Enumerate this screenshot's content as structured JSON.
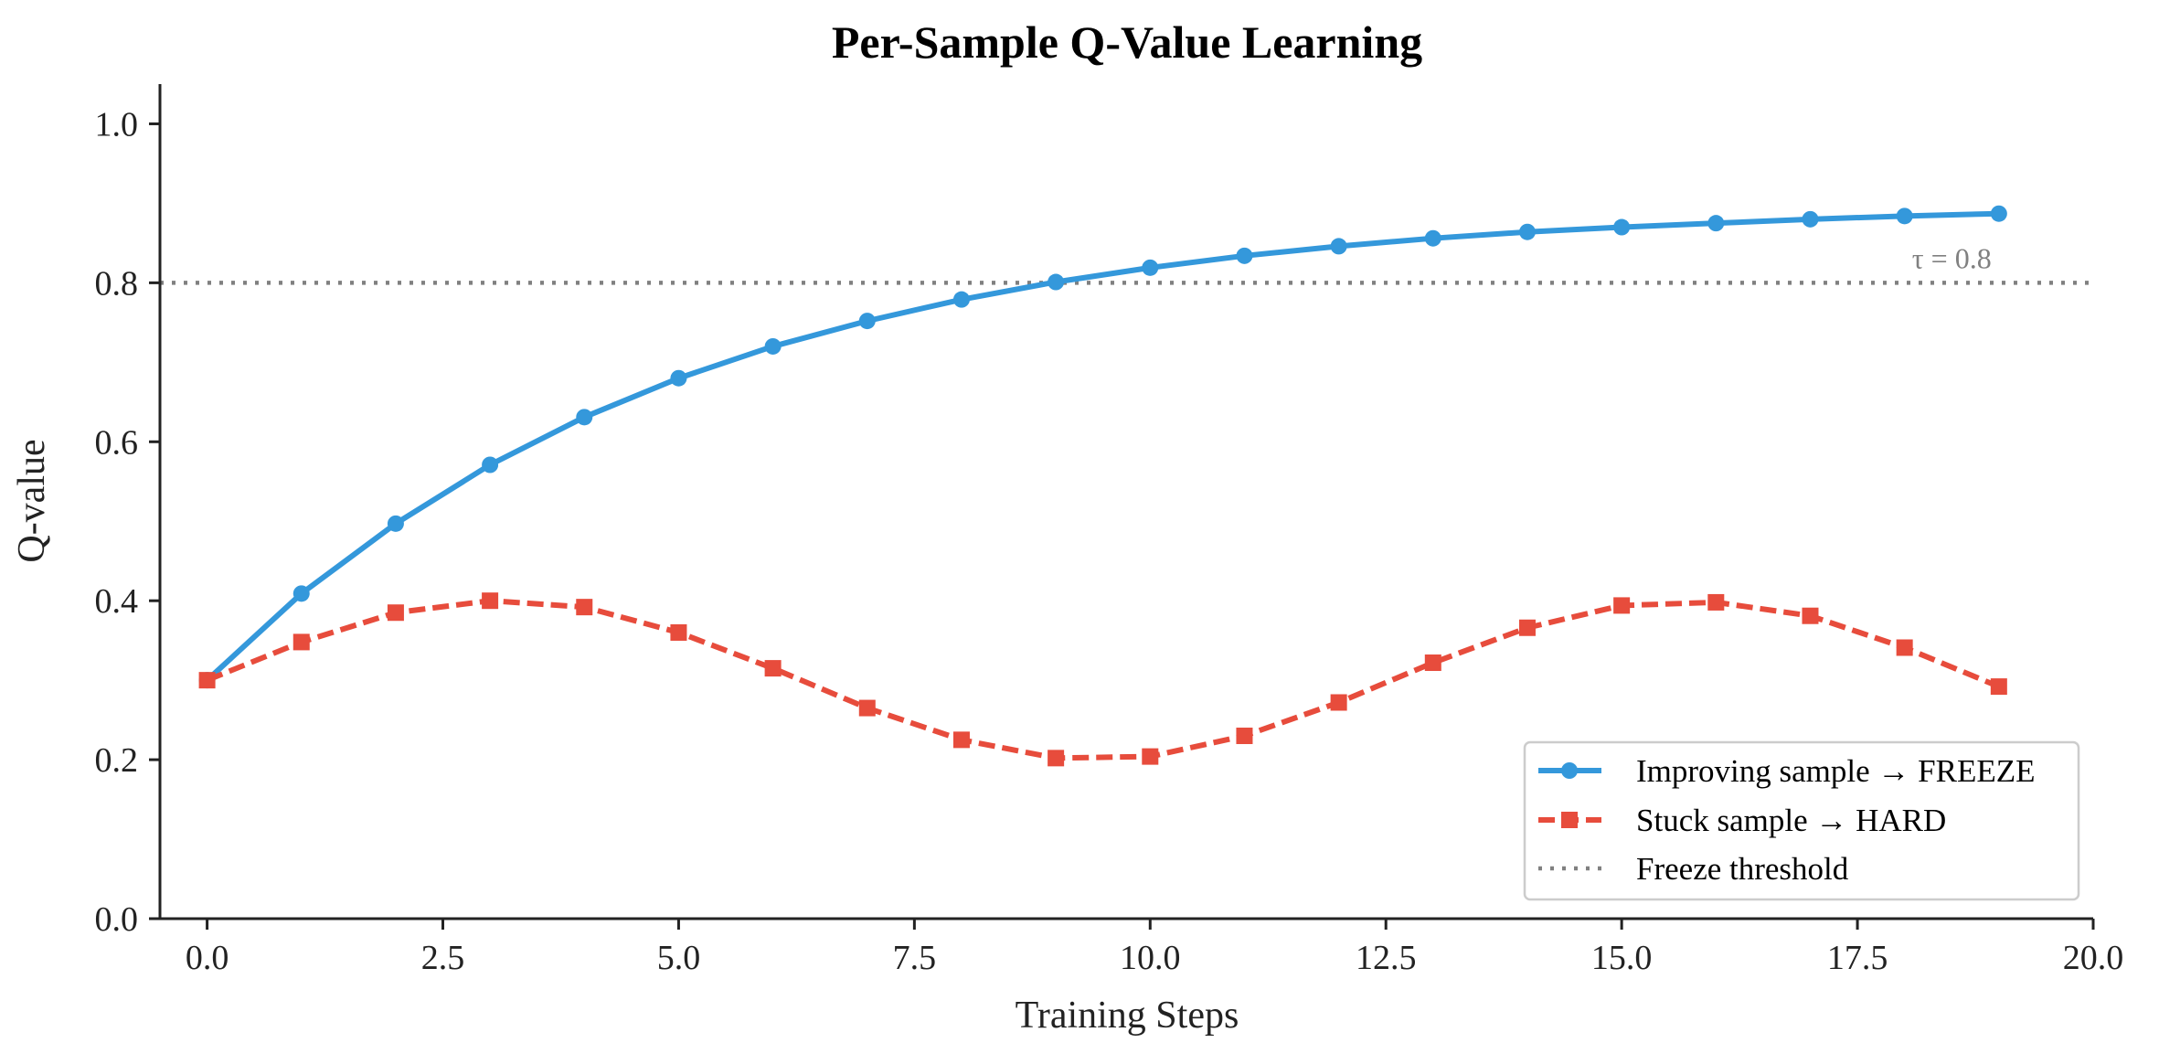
{
  "chart_data": {
    "type": "line",
    "title": "Per-Sample Q-Value Learning",
    "xlabel": "Training Steps",
    "ylabel": "Q-value",
    "xlim": [
      -0.5,
      20.0
    ],
    "ylim": [
      0.0,
      1.05
    ],
    "xticks": [
      "0.0",
      "2.5",
      "5.0",
      "7.5",
      "10.0",
      "12.5",
      "15.0",
      "17.5",
      "20.0"
    ],
    "yticks": [
      "0.0",
      "0.2",
      "0.4",
      "0.6",
      "0.8",
      "1.0"
    ],
    "x": [
      0,
      1,
      2,
      3,
      4,
      5,
      6,
      7,
      8,
      9,
      10,
      11,
      12,
      13,
      14,
      15,
      16,
      17,
      18,
      19
    ],
    "series": [
      {
        "name": "Improving sample → FREEZE",
        "color": "#3498db",
        "style": "solid",
        "marker": "circle",
        "values": [
          0.3,
          0.409,
          0.497,
          0.571,
          0.631,
          0.68,
          0.72,
          0.752,
          0.779,
          0.801,
          0.819,
          0.834,
          0.846,
          0.856,
          0.864,
          0.87,
          0.875,
          0.88,
          0.884,
          0.887
        ]
      },
      {
        "name": "Stuck sample → HARD",
        "color": "#e74c3c",
        "style": "dashed",
        "marker": "square",
        "values": [
          0.3,
          0.348,
          0.385,
          0.4,
          0.392,
          0.36,
          0.315,
          0.265,
          0.225,
          0.202,
          0.204,
          0.23,
          0.272,
          0.322,
          0.366,
          0.394,
          0.398,
          0.381,
          0.341,
          0.292
        ]
      }
    ],
    "threshold": {
      "name": "Freeze threshold",
      "value": 0.8,
      "color": "#808080",
      "style": "dotted",
      "annotation": "τ = 0.8"
    },
    "legend_position": "lower-right",
    "grid": false
  }
}
